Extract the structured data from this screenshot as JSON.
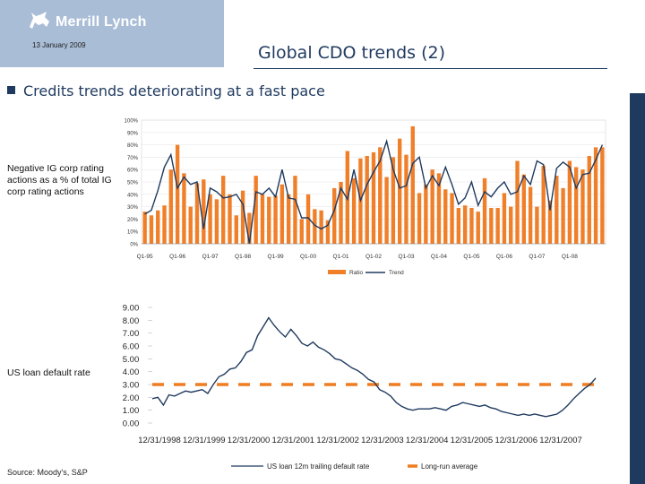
{
  "header": {
    "logo_text": "Merrill Lynch",
    "date": "13 January 2009",
    "title": "Global CDO trends (2)",
    "bullet": "Credits trends deteriorating at a fast pace"
  },
  "labels": {
    "chart1_side": "Negative IG corp rating actions as a % of total IG corp rating actions",
    "chart2_side": "US loan default rate",
    "source": "Source: Moody's, S&P"
  },
  "colors": {
    "bar": "#f07f2a",
    "line": "#1f3a5f",
    "avg": "#ef7d22",
    "stripe": "#1f3a5f"
  },
  "chart_data": [
    {
      "type": "bar",
      "ylim": [
        0,
        100
      ],
      "yticks": [
        "0%",
        "10%",
        "20%",
        "30%",
        "40%",
        "50%",
        "60%",
        "70%",
        "80%",
        "90%",
        "100%"
      ],
      "xticks": [
        "Q1-95",
        "Q1-96",
        "Q1-97",
        "Q1-98",
        "Q1-99",
        "Q1-00",
        "Q1-01",
        "Q1-02",
        "Q1-03",
        "Q1-04",
        "Q1-05",
        "Q1-06",
        "Q1-07",
        "Q1-08"
      ],
      "legend": [
        "Ratio",
        "Trend"
      ],
      "series": [
        {
          "name": "Ratio",
          "kind": "bar",
          "values": [
            26,
            23,
            27,
            31,
            60,
            80,
            57,
            30,
            49,
            52,
            40,
            36,
            55,
            40,
            23,
            43,
            25,
            55,
            40,
            38,
            39,
            48,
            40,
            55,
            20,
            40,
            28,
            27,
            19,
            45,
            50,
            75,
            53,
            69,
            71,
            74,
            78,
            54,
            70,
            85,
            72,
            95,
            41,
            48,
            60,
            57,
            44,
            41,
            29,
            31,
            29,
            26,
            53,
            29,
            29,
            41,
            30,
            67,
            56,
            46,
            30,
            63,
            35,
            55,
            45,
            67,
            62,
            60,
            71,
            78,
            78
          ]
        },
        {
          "name": "Trend",
          "kind": "line",
          "values": [
            24,
            27,
            43,
            62,
            72,
            45,
            54,
            48,
            50,
            12,
            45,
            42,
            37,
            38,
            40,
            32,
            0,
            42,
            40,
            45,
            38,
            60,
            37,
            36,
            21,
            21,
            15,
            12,
            15,
            27,
            45,
            36,
            60,
            35,
            48,
            58,
            67,
            83,
            60,
            45,
            47,
            65,
            70,
            45,
            55,
            47,
            62,
            48,
            32,
            37,
            50,
            31,
            42,
            38,
            45,
            50,
            40,
            42,
            55,
            48,
            67,
            64,
            27,
            61,
            66,
            62,
            45,
            56,
            57,
            68,
            80
          ]
        }
      ]
    },
    {
      "type": "line",
      "ylim": [
        0,
        9
      ],
      "yticks": [
        "0.00",
        "1.00",
        "2.00",
        "3.00",
        "4.00",
        "5.00",
        "6.00",
        "7.00",
        "8.00",
        "9.00"
      ],
      "xticks": [
        "12/31/1998",
        "12/31/1999",
        "12/31/2000",
        "12/31/2001",
        "12/31/2002",
        "12/31/2003",
        "12/31/2004",
        "12/31/2005",
        "12/31/2006",
        "12/31/2007"
      ],
      "legend": [
        "US loan 12m trailing default rate",
        "Long-run average"
      ],
      "series": [
        {
          "name": "US loan 12m trailing default rate",
          "kind": "line",
          "values": [
            1.9,
            2.0,
            1.4,
            2.2,
            2.1,
            2.3,
            2.5,
            2.4,
            2.5,
            2.6,
            2.3,
            3.0,
            3.6,
            3.8,
            4.2,
            4.3,
            4.8,
            5.5,
            5.7,
            6.8,
            7.5,
            8.2,
            7.6,
            7.1,
            6.7,
            7.3,
            6.8,
            6.2,
            6.0,
            6.3,
            5.9,
            5.7,
            5.4,
            5.0,
            4.9,
            4.6,
            4.3,
            4.1,
            3.8,
            3.4,
            3.2,
            2.6,
            2.4,
            2.1,
            1.6,
            1.3,
            1.1,
            1.0,
            1.1,
            1.1,
            1.1,
            1.2,
            1.1,
            1.0,
            1.3,
            1.4,
            1.6,
            1.5,
            1.4,
            1.3,
            1.4,
            1.2,
            1.1,
            0.9,
            0.8,
            0.7,
            0.6,
            0.7,
            0.6,
            0.7,
            0.6,
            0.5,
            0.6,
            0.7,
            1.0,
            1.4,
            1.9,
            2.3,
            2.7,
            3.0,
            3.5
          ]
        },
        {
          "name": "Long-run average",
          "kind": "dashed",
          "constant": 3.0
        }
      ]
    }
  ]
}
